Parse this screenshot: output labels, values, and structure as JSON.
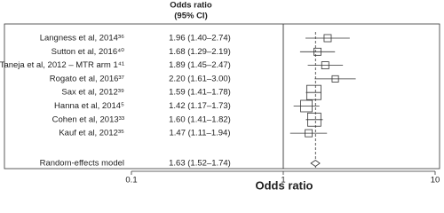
{
  "chart_data": {
    "type": "forest",
    "column_title": "Odds ratio",
    "column_subtitle": "(95% CI)",
    "xlabel": "Odds ratio",
    "log_scale": true,
    "xlim": [
      0.1,
      10
    ],
    "xticks": [
      0.1,
      1,
      10
    ],
    "reference_line": 1,
    "color": "#333333",
    "studies": [
      {
        "label": "Langness et al, 2014³⁶",
        "or": 1.96,
        "ci": [
          1.4,
          2.74
        ],
        "text": "1.96 (1.40–2.74)",
        "weight": 5
      },
      {
        "label": "Sutton et al, 2016⁴⁰",
        "or": 1.68,
        "ci": [
          1.29,
          2.19
        ],
        "text": "1.68 (1.29–2.19)",
        "weight": 5
      },
      {
        "label": "Taneja et al, 2012 – MTR arm 1⁴¹",
        "or": 1.89,
        "ci": [
          1.45,
          2.47
        ],
        "text": "1.89 (1.45–2.47)",
        "weight": 5
      },
      {
        "label": "Rogato et al, 2016³⁷",
        "or": 2.2,
        "ci": [
          1.61,
          3.0
        ],
        "text": "2.20 (1.61–3.00)",
        "weight": 4
      },
      {
        "label": "Sax et al, 2012³⁹",
        "or": 1.59,
        "ci": [
          1.41,
          1.78
        ],
        "text": "1.59 (1.41–1.78)",
        "weight": 20
      },
      {
        "label": "Hanna et al, 2014⁵",
        "or": 1.42,
        "ci": [
          1.17,
          1.73
        ],
        "text": "1.42 (1.17–1.73)",
        "weight": 13
      },
      {
        "label": "Cohen et al, 2013³³",
        "or": 1.6,
        "ci": [
          1.41,
          1.82
        ],
        "text": "1.60 (1.41–1.82)",
        "weight": 17
      },
      {
        "label": "Kauf et al, 2012³⁵",
        "or": 1.47,
        "ci": [
          1.11,
          1.94
        ],
        "text": "1.47 (1.11–1.94)",
        "weight": 5
      }
    ],
    "pooled": {
      "label": "Random-effects model",
      "or": 1.63,
      "ci": [
        1.52,
        1.74
      ],
      "text": "1.63 (1.52–1.74)"
    }
  }
}
